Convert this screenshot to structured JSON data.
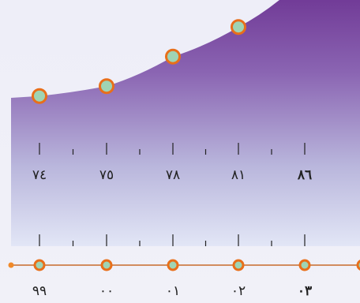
{
  "chart_data": {
    "type": "area",
    "x": [
      "٧٤",
      "٧٥",
      "٧٨",
      "٨١",
      "٨٦"
    ],
    "y": [
      74,
      75,
      78,
      81,
      86
    ],
    "title": "",
    "xlabel": "",
    "ylabel": "",
    "timeline_labels": [
      "٩٩",
      "٠٠",
      "٠١",
      "٠٢",
      "٠٣"
    ],
    "colors": {
      "area_top": "#6a2f8f",
      "area_bottom": "#dfe3f5",
      "marker_fill": "#9fd4b4",
      "marker_stroke": "#e86f1a",
      "timeline": "#c86a2a"
    }
  }
}
